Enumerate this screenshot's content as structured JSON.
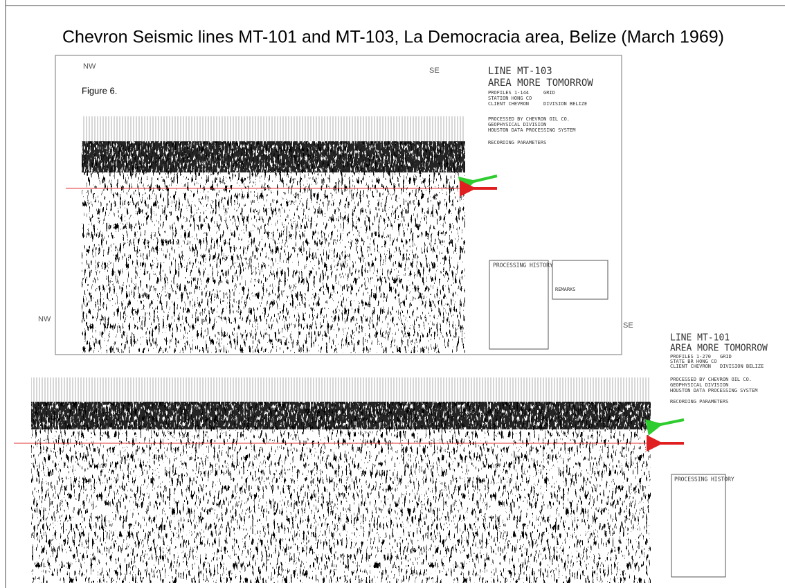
{
  "header": {
    "title": "Chevron Seismic lines MT-101 and MT-103, La Democracia area, Belize (March 1969)"
  },
  "figure_label": "Figure 6.",
  "sections": [
    {
      "nw": "NW",
      "se": "SE",
      "line": "LINE MT-103",
      "area": "AREA MORE TOMORROW",
      "profiles": "PROFILES 1-144",
      "grid": "GRID",
      "station": "STATION HONG CO",
      "client": "CLIENT CHEVRON",
      "division": "DIVISION BELIZE",
      "processed": "PROCESSED BY CHEVRON OIL CO.",
      "geo": "GEOPHYSICAL DIVISION",
      "houston": "HOUSTON DATA PROCESSING SYSTEM",
      "recording": "RECORDING PARAMETERS",
      "history": "PROCESSING HISTORY",
      "remarks": "REMARKS"
    },
    {
      "nw": "NW",
      "se": "SE",
      "line": "LINE MT-101",
      "area": "AREA MORE TOMORROW",
      "profiles": "PROFILES 1-270",
      "grid": "GRID",
      "station": "STATE BR HONG CO",
      "client": "CLIENT CHEVRON",
      "division": "DIVISION BELIZE",
      "processed": "PROCESSED BY CHEVRON OIL CO.",
      "geo": "GEOPHYSICAL DIVISION",
      "houston": "HOUSTON DATA PROCESSING SYSTEM",
      "recording": "RECORDING PARAMETERS",
      "history": "PROCESSING HISTORY"
    }
  ]
}
